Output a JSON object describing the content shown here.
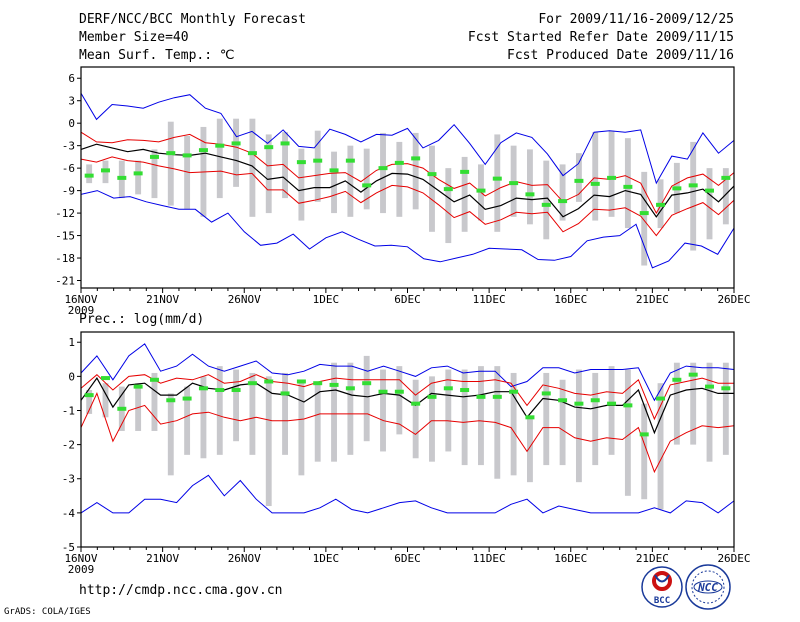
{
  "header": {
    "title": "DERF/NCC/BCC Monthly Forecast",
    "member_size": "Member Size=40",
    "variable1": "Mean Surf. Temp.: ℃",
    "forecast_period": "For 2009/11/16-2009/12/25",
    "refer_date": "Fcst Started Refer Date 2009/11/15",
    "produced_date": "Fcst Produced Date 2009/11/16"
  },
  "footer": {
    "url": "http://cmdp.ncc.cma.gov.cn",
    "credit": "GrADS: COLA/IGES",
    "logo_bcc_text": "BCC",
    "logo_ncc_text": "NCC"
  },
  "colors": {
    "ensemble_mean": "#000000",
    "spread_lines": "#e60000",
    "extreme_lines": "#0000e6",
    "observed": "#33dd33",
    "range_box": "#c8c8cc",
    "frame": "#000000"
  },
  "chart_data": [
    {
      "id": "temp",
      "type": "line",
      "title": "Mean Surf. Temp.: ℃",
      "ylim": [
        -22,
        7.5
      ],
      "yticks": [
        6,
        3,
        0,
        -3,
        -6,
        -9,
        -12,
        -15,
        -18,
        -21
      ],
      "ytick_labels": [
        "6",
        "3",
        "0",
        "-3",
        "-6",
        "-9",
        "-12",
        "-15",
        "-18",
        "-21"
      ],
      "xlim": [
        0,
        40
      ],
      "xticks": [
        0,
        5,
        10,
        15,
        20,
        25,
        30,
        35,
        40
      ],
      "xtick_labels": [
        "16NOV",
        "21NOV",
        "26NOV",
        "1DEC",
        "6DEC",
        "11DEC",
        "16DEC",
        "21DEC",
        "26DEC"
      ],
      "xtick_sublabel": "2009",
      "box_width": 0.36,
      "obs_width": 0.55,
      "series": [
        {
          "name": "ensemble_mean",
          "values": [
            -3.5,
            -2.8,
            -3.3,
            -3.8,
            -3.5,
            -4.0,
            -4.2,
            -4.3,
            -4.0,
            -4.5,
            -5.0,
            -5.7,
            -7.5,
            -7.2,
            -9.0,
            -8.6,
            -8.6,
            -7.7,
            -9.2,
            -7.7,
            -6.7,
            -6.8,
            -7.5,
            -9.0,
            -10.5,
            -9.6,
            -11.5,
            -11.0,
            -10.0,
            -10.2,
            -10.0,
            -12.5,
            -11.4,
            -9.6,
            -9.8,
            -9.0,
            -9.5,
            -12.5,
            -9.6,
            -9.3,
            -8.8,
            -10.5,
            -8.4
          ]
        },
        {
          "name": "upper_spread",
          "values": [
            -1.2,
            -2.5,
            -2.6,
            -2.2,
            -2.3,
            -2.5,
            -1.9,
            -1.5,
            -2.6,
            -2.8,
            -3.2,
            -4.0,
            -5.7,
            -5.5,
            -7.3,
            -7.0,
            -6.7,
            -6.6,
            -7.8,
            -6.3,
            -5.5,
            -5.4,
            -6.0,
            -7.5,
            -8.7,
            -8.0,
            -9.7,
            -8.6,
            -7.8,
            -8.3,
            -8.2,
            -10.5,
            -9.5,
            -7.3,
            -7.5,
            -7.0,
            -8.0,
            -12.0,
            -8.4,
            -7.3,
            -6.8,
            -8.3,
            -6.6
          ]
        },
        {
          "name": "lower_spread",
          "values": [
            -4.8,
            -5.2,
            -4.5,
            -5.0,
            -5.2,
            -5.7,
            -6.1,
            -6.6,
            -6.5,
            -6.4,
            -6.9,
            -6.7,
            -8.9,
            -8.9,
            -10.7,
            -10.3,
            -9.8,
            -9.1,
            -10.6,
            -9.3,
            -8.3,
            -8.5,
            -9.3,
            -10.9,
            -12.6,
            -11.8,
            -13.5,
            -12.9,
            -11.9,
            -12.1,
            -11.9,
            -14.5,
            -13.4,
            -11.5,
            -11.6,
            -11.3,
            -12.4,
            -15.0,
            -12.3,
            -11.4,
            -10.6,
            -12.2,
            -10.3
          ]
        },
        {
          "name": "max_member",
          "values": [
            4.0,
            0.5,
            2.5,
            2.3,
            2.0,
            2.8,
            3.4,
            3.8,
            2.0,
            1.3,
            -1.8,
            -1.1,
            -2.7,
            -0.9,
            -3.1,
            -3.3,
            -0.8,
            -1.5,
            -2.5,
            -1.5,
            -1.6,
            -0.7,
            -3.3,
            -2.3,
            -0.2,
            -2.7,
            -5.5,
            -2.6,
            -1.3,
            -1.9,
            -4.1,
            -7.0,
            -5.4,
            -1.2,
            -1.0,
            -1.2,
            -0.9,
            -8.0,
            -4.4,
            -4.8,
            -1.3,
            -4.0,
            -2.3
          ]
        },
        {
          "name": "min_member",
          "values": [
            -9.5,
            -9.0,
            -10.0,
            -9.8,
            -10.5,
            -11.0,
            -11.5,
            -11.5,
            -13.2,
            -12.0,
            -14.5,
            -16.3,
            -16.0,
            -14.8,
            -16.8,
            -15.3,
            -14.5,
            -15.5,
            -16.4,
            -16.3,
            -16.5,
            -18.1,
            -18.5,
            -18.0,
            -17.5,
            -16.7,
            -16.8,
            -16.9,
            -18.2,
            -18.3,
            -17.8,
            -15.7,
            -15.2,
            -15.0,
            -13.5,
            -19.3,
            -18.4,
            -16.0,
            -16.4,
            -17.5,
            -14.0
          ]
        },
        {
          "name": "observed",
          "values": [
            -7.0,
            -6.3,
            -7.3,
            -6.7,
            -4.5,
            -4.0,
            -4.3,
            -3.6,
            -3.0,
            -2.7,
            -4.0,
            -3.2,
            -2.7,
            -5.2,
            -5.0,
            -6.3,
            -5.0,
            -8.3,
            -6.0,
            -5.3,
            -4.7,
            -6.8,
            -8.8,
            -6.5,
            -9.0,
            -7.4,
            -8.0,
            -9.5,
            -10.9,
            -10.4,
            -7.7,
            -8.1,
            -7.3,
            -8.5,
            -12.0,
            -10.9,
            -8.7,
            -8.3,
            -9.0,
            -7.3
          ]
        },
        {
          "name": "box_top",
          "values": [
            -5.5,
            -5.0,
            -5.0,
            -5.0,
            -3.5,
            0.2,
            -1.7,
            -0.5,
            0.6,
            0.6,
            0.6,
            -1.5,
            -1.2,
            -3.4,
            -1.0,
            -3.8,
            -3.0,
            -3.4,
            -1.3,
            -2.5,
            -1.3,
            -3.0,
            -6.0,
            -4.5,
            -5.5,
            -1.5,
            -3.0,
            -3.5,
            -5.0,
            -5.5,
            -4.0,
            -1.2,
            -1.0,
            -2.0,
            -6.5,
            -7.5,
            -5.3,
            -2.5,
            -6.0,
            -6.0
          ]
        },
        {
          "name": "box_bottom",
          "values": [
            -8.0,
            -8.0,
            -10.0,
            -9.5,
            -10.0,
            -11.0,
            -11.5,
            -12.5,
            -10.0,
            -8.5,
            -12.5,
            -12.0,
            -10.0,
            -13.0,
            -10.5,
            -12.0,
            -12.5,
            -11.5,
            -12.0,
            -12.5,
            -11.5,
            -14.5,
            -16.0,
            -14.5,
            -13.0,
            -14.5,
            -12.5,
            -13.5,
            -15.5,
            -13.0,
            -10.5,
            -13.0,
            -12.5,
            -14.0,
            -19.0,
            -14.0,
            -12.0,
            -17.0,
            -15.5,
            -13.5
          ]
        }
      ]
    },
    {
      "id": "prec",
      "type": "line",
      "title": "Prec.: log(mm/d)",
      "ylim": [
        -5,
        1.3
      ],
      "yticks": [
        1,
        0,
        -1,
        -2,
        -3,
        -4,
        -5
      ],
      "ytick_labels": [
        "1",
        "0",
        "-1",
        "-2",
        "-3",
        "-4",
        "-5"
      ],
      "xlim": [
        0,
        40
      ],
      "xticks": [
        0,
        5,
        10,
        15,
        20,
        25,
        30,
        35,
        40
      ],
      "xtick_labels": [
        "16NOV",
        "21NOV",
        "26NOV",
        "1DEC",
        "6DEC",
        "11DEC",
        "16DEC",
        "21DEC",
        "26DEC"
      ],
      "xtick_sublabel": "2009",
      "box_width": 0.36,
      "obs_width": 0.55,
      "series": [
        {
          "name": "ensemble_mean",
          "values": [
            -0.7,
            -0.05,
            -0.9,
            -0.25,
            -0.2,
            -0.55,
            -0.55,
            -0.2,
            -0.35,
            -0.4,
            -0.25,
            -0.2,
            -0.5,
            -0.55,
            -0.75,
            -0.45,
            -0.4,
            -0.55,
            -0.6,
            -0.5,
            -0.55,
            -0.85,
            -0.5,
            -0.55,
            -0.6,
            -0.55,
            -0.45,
            -0.45,
            -1.2,
            -0.65,
            -0.7,
            -0.9,
            -0.95,
            -0.85,
            -0.85,
            -0.4,
            -1.65,
            -0.55,
            -0.4,
            -0.35,
            -0.5,
            -0.5
          ]
        },
        {
          "name": "upper_spread",
          "values": [
            -0.35,
            0.05,
            -0.4,
            0.0,
            0.05,
            -0.2,
            -0.05,
            -0.1,
            0.05,
            -0.2,
            -0.15,
            0.05,
            -0.15,
            -0.2,
            -0.3,
            -0.15,
            -0.05,
            -0.1,
            -0.1,
            -0.1,
            -0.1,
            -0.55,
            -0.2,
            -0.1,
            -0.15,
            -0.15,
            -0.1,
            -0.2,
            -0.85,
            -0.25,
            -0.35,
            -0.5,
            -0.55,
            -0.45,
            -0.5,
            -0.1,
            -1.25,
            -0.25,
            -0.15,
            -0.05,
            -0.2,
            -0.2
          ]
        },
        {
          "name": "lower_spread",
          "values": [
            -1.5,
            -0.5,
            -1.9,
            -1.0,
            -0.85,
            -1.4,
            -1.3,
            -1.1,
            -1.05,
            -1.2,
            -1.3,
            -1.2,
            -1.3,
            -1.3,
            -1.25,
            -1.1,
            -1.1,
            -1.1,
            -1.1,
            -1.3,
            -1.4,
            -1.7,
            -1.3,
            -1.3,
            -1.35,
            -1.3,
            -1.35,
            -1.5,
            -2.2,
            -1.5,
            -1.5,
            -1.8,
            -1.9,
            -1.8,
            -1.85,
            -1.5,
            -2.8,
            -1.9,
            -1.65,
            -1.45,
            -1.5,
            -1.45
          ]
        },
        {
          "name": "max_member",
          "values": [
            0.1,
            0.6,
            -0.1,
            0.6,
            0.95,
            0.15,
            0.3,
            0.65,
            0.3,
            0.15,
            0.3,
            0.45,
            0.1,
            0.05,
            0.15,
            0.35,
            0.3,
            0.3,
            0.15,
            0.3,
            0.15,
            0.0,
            0.25,
            0.3,
            0.1,
            0.15,
            0.15,
            -0.3,
            -0.15,
            0.25,
            0.25,
            0.1,
            0.2,
            0.2,
            0.2,
            0.25,
            -0.7,
            0.1,
            0.3,
            0.25,
            0.25,
            0.2
          ]
        },
        {
          "name": "min_member",
          "values": [
            -4.0,
            -3.7,
            -4.0,
            -4.0,
            -3.6,
            -3.6,
            -3.7,
            -3.2,
            -2.9,
            -3.5,
            -3.05,
            -3.6,
            -4.0,
            -4.0,
            -4.0,
            -3.85,
            -3.6,
            -3.9,
            -4.0,
            -3.85,
            -3.7,
            -3.65,
            -3.85,
            -4.0,
            -4.0,
            -4.0,
            -4.0,
            -3.75,
            -3.6,
            -4.0,
            -3.8,
            -3.9,
            -4.0,
            -4.0,
            -4.0,
            -4.0,
            -3.85,
            -4.0,
            -3.65,
            -3.7,
            -4.0,
            -3.65
          ]
        },
        {
          "name": "observed",
          "values": [
            -0.55,
            -0.05,
            -0.95,
            -0.3,
            -0.1,
            -0.7,
            -0.65,
            -0.35,
            -0.4,
            -0.4,
            -0.2,
            -0.15,
            -0.5,
            -0.15,
            -0.2,
            -0.25,
            -0.35,
            -0.2,
            -0.45,
            -0.45,
            -0.8,
            -0.6,
            -0.35,
            -0.4,
            -0.6,
            -0.6,
            -0.45,
            -1.2,
            -0.5,
            -0.7,
            -0.8,
            -0.7,
            -0.8,
            -0.85,
            -1.7,
            -0.65,
            -0.1,
            0.05,
            -0.3,
            -0.35
          ]
        },
        {
          "name": "box_top",
          "values": [
            -0.4,
            -0.2,
            -0.3,
            -0.2,
            0.1,
            -0.5,
            -0.3,
            0.0,
            0.3,
            0.2,
            0.1,
            0.0,
            0.1,
            -0.2,
            -0.2,
            0.4,
            0.4,
            0.6,
            0.2,
            0.3,
            -0.1,
            0.0,
            0.2,
            0.2,
            0.3,
            0.3,
            0.1,
            -1.2,
            0.1,
            -0.1,
            0.2,
            0.1,
            0.3,
            0.2,
            -0.8,
            -0.2,
            0.4,
            0.4,
            0.4,
            0.4
          ]
        },
        {
          "name": "box_bottom",
          "values": [
            -1.1,
            -1.2,
            -1.6,
            -1.6,
            -1.6,
            -2.9,
            -2.3,
            -2.4,
            -2.3,
            -1.9,
            -2.3,
            -3.8,
            -2.3,
            -2.9,
            -2.5,
            -2.5,
            -2.3,
            -1.9,
            -2.2,
            -1.7,
            -2.4,
            -2.5,
            -2.2,
            -2.6,
            -2.6,
            -3.0,
            -2.9,
            -3.1,
            -2.6,
            -2.6,
            -3.1,
            -2.6,
            -2.3,
            -3.5,
            -3.6,
            -3.9,
            -2.0,
            -2.0,
            -2.5,
            -2.3
          ]
        }
      ]
    }
  ]
}
